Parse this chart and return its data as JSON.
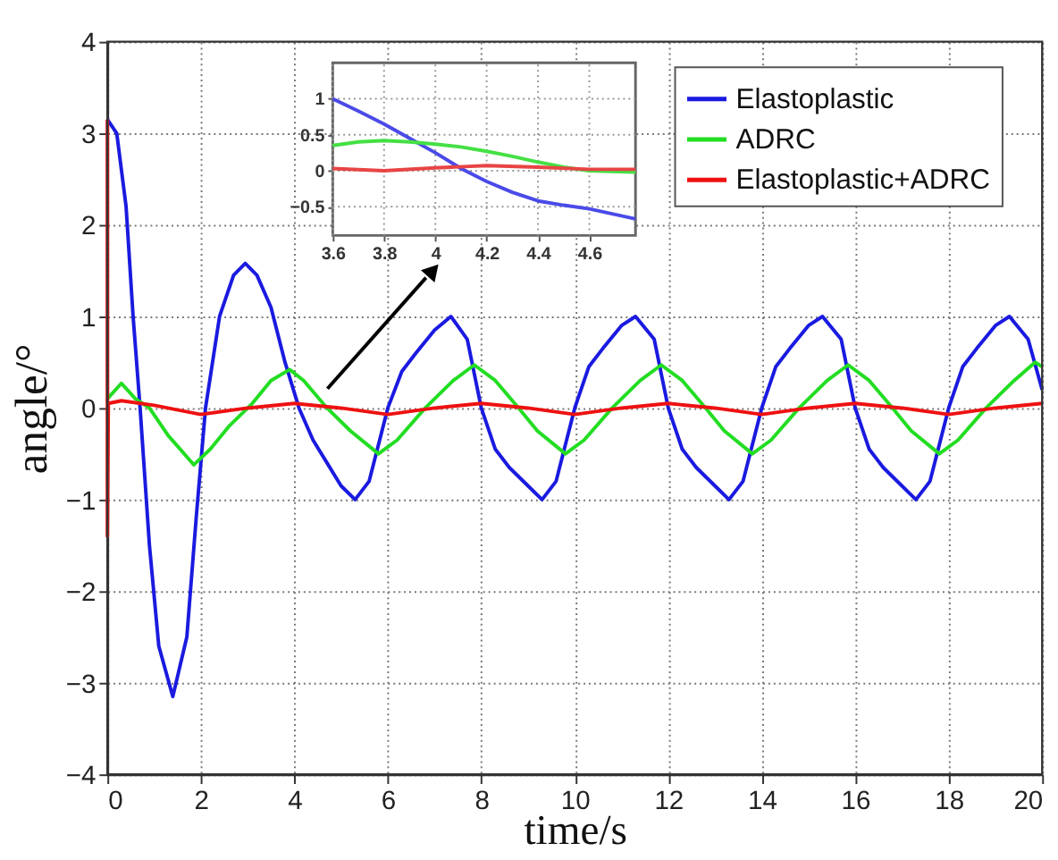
{
  "chart_data": [
    {
      "type": "line",
      "xlabel": "time/s",
      "ylabel": "angle/°",
      "xlim": [
        0,
        20
      ],
      "ylim": [
        -4,
        4
      ],
      "xticks": [
        0,
        2,
        4,
        6,
        8,
        10,
        12,
        14,
        16,
        18,
        20
      ],
      "yticks": [
        -4,
        -3,
        -2,
        -1,
        0,
        1,
        2,
        3,
        4
      ],
      "grid": true,
      "legend": "top right",
      "line_style": "solid",
      "marker": "none",
      "series": [
        {
          "name": "Elastoplastic",
          "color": "#1a1ae0",
          "x": [
            0,
            0.2,
            0.4,
            0.55,
            0.7,
            0.9,
            1.1,
            1.4,
            1.7,
            1.9,
            2.1,
            2.4,
            2.7,
            2.95,
            3.2,
            3.5,
            3.8,
            4.1,
            4.4,
            4.7,
            5.0,
            5.3,
            5.6,
            6.0,
            6.3,
            6.6,
            7.0,
            7.35,
            7.7,
            8.0,
            8.3,
            8.6,
            9.0,
            9.3,
            9.6,
            10.0,
            10.3,
            10.6,
            11.0,
            11.3,
            11.7,
            12.0,
            12.3,
            12.6,
            13.0,
            13.3,
            13.6,
            14.0,
            14.3,
            14.6,
            15.0,
            15.3,
            15.7,
            16.0,
            16.3,
            16.6,
            17.0,
            17.3,
            17.6,
            18.0,
            18.3,
            18.6,
            19.0,
            19.3,
            19.7,
            20.0
          ],
          "values": [
            3.15,
            3.0,
            2.2,
            1.0,
            0,
            -1.5,
            -2.6,
            -3.15,
            -2.5,
            -1.2,
            0,
            1.0,
            1.45,
            1.58,
            1.45,
            1.1,
            0.5,
            0,
            -0.35,
            -0.6,
            -0.85,
            -1.0,
            -0.8,
            0,
            0.4,
            0.6,
            0.85,
            1.0,
            0.75,
            0,
            -0.45,
            -0.65,
            -0.85,
            -1.0,
            -0.8,
            0,
            0.45,
            0.65,
            0.9,
            1.0,
            0.75,
            0,
            -0.45,
            -0.65,
            -0.85,
            -1.0,
            -0.8,
            0,
            0.45,
            0.65,
            0.9,
            1.0,
            0.75,
            0,
            -0.45,
            -0.65,
            -0.85,
            -1.0,
            -0.8,
            0,
            0.45,
            0.65,
            0.9,
            1.0,
            0.75,
            0.2
          ]
        },
        {
          "name": "ADRC",
          "color": "#22dd22",
          "x": [
            0,
            0.3,
            0.6,
            0.9,
            1.3,
            1.85,
            2.2,
            2.6,
            3.1,
            3.5,
            3.9,
            4.2,
            4.7,
            5.2,
            5.8,
            6.2,
            6.8,
            7.4,
            7.85,
            8.3,
            8.8,
            9.2,
            9.8,
            10.2,
            10.8,
            11.4,
            11.85,
            12.3,
            12.8,
            13.2,
            13.8,
            14.2,
            14.8,
            15.4,
            15.85,
            16.3,
            16.8,
            17.2,
            17.8,
            18.2,
            18.8,
            19.4,
            19.85,
            20
          ],
          "values": [
            0.1,
            0.27,
            0.1,
            0,
            -0.3,
            -0.62,
            -0.45,
            -0.2,
            0.05,
            0.3,
            0.42,
            0.3,
            0,
            -0.25,
            -0.5,
            -0.35,
            0,
            0.3,
            0.47,
            0.3,
            0,
            -0.25,
            -0.5,
            -0.35,
            0,
            0.3,
            0.47,
            0.3,
            0,
            -0.25,
            -0.5,
            -0.35,
            0,
            0.3,
            0.47,
            0.3,
            0,
            -0.25,
            -0.5,
            -0.35,
            0,
            0.3,
            0.5,
            0.45
          ]
        },
        {
          "name": "Elastoplastic+ADRC",
          "color": "#ee1111",
          "x": [
            0,
            0,
            0.02,
            0.3,
            1,
            2,
            3,
            4,
            5,
            6,
            7,
            8,
            9,
            10,
            11,
            12,
            13,
            14,
            15,
            16,
            17,
            18,
            19,
            20
          ],
          "values": [
            3.15,
            -1.4,
            0.05,
            0.08,
            0.03,
            -0.07,
            0,
            0.05,
            0,
            -0.07,
            0,
            0.05,
            0,
            -0.07,
            0,
            0.05,
            0,
            -0.07,
            0,
            0.05,
            0,
            -0.07,
            0,
            0.05
          ]
        }
      ]
    },
    {
      "type": "line",
      "xlim": [
        3.6,
        4.78
      ],
      "ylim": [
        -0.9,
        1.5
      ],
      "xticks": [
        3.6,
        3.8,
        4,
        4.2,
        4.4,
        4.6
      ],
      "yticks": [
        -0.5,
        0,
        0.5,
        1
      ],
      "grid": true,
      "line_style": "solid",
      "marker": "none",
      "series": [
        {
          "color": "#4a4ae8",
          "x": [
            3.6,
            3.7,
            3.8,
            3.9,
            4.0,
            4.1,
            4.2,
            4.3,
            4.4,
            4.5,
            4.6,
            4.78
          ],
          "values": [
            1.0,
            0.83,
            0.65,
            0.45,
            0.25,
            0.03,
            -0.15,
            -0.3,
            -0.42,
            -0.48,
            -0.53,
            -0.67
          ]
        },
        {
          "color": "#44e044",
          "x": [
            3.6,
            3.7,
            3.8,
            3.9,
            4.0,
            4.1,
            4.2,
            4.3,
            4.4,
            4.5,
            4.6,
            4.78
          ],
          "values": [
            0.35,
            0.4,
            0.42,
            0.4,
            0.37,
            0.33,
            0.27,
            0.2,
            0.12,
            0.05,
            0.0,
            -0.02
          ]
        },
        {
          "color": "#e84444",
          "x": [
            3.6,
            3.8,
            4.0,
            4.2,
            4.4,
            4.6,
            4.78
          ],
          "values": [
            0.03,
            0.0,
            0.04,
            0.07,
            0.05,
            0.02,
            0.02
          ]
        }
      ]
    }
  ]
}
